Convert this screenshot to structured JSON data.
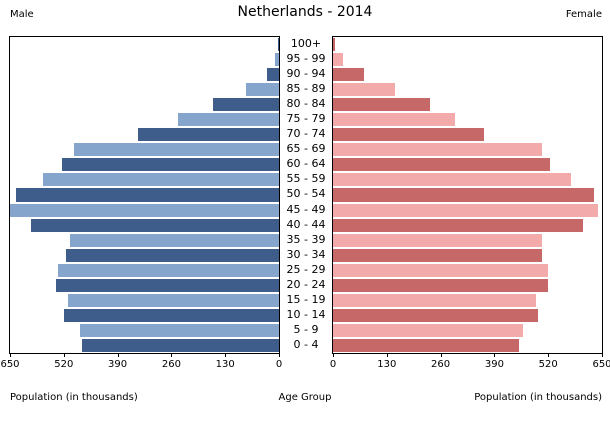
{
  "chart_data": {
    "type": "bar",
    "subtype": "population-pyramid",
    "title": "Netherlands - 2014",
    "left_series_label": "Male",
    "right_series_label": "Female",
    "left_axis_label": "Population (in thousands)",
    "center_axis_label": "Age Group",
    "right_axis_label": "Population (in thousands)",
    "xlim": [
      0,
      650
    ],
    "x_ticks": [
      0,
      130,
      260,
      390,
      520,
      650
    ],
    "grid": false,
    "legend_position": "none",
    "age_groups": [
      "100+",
      "95 - 99",
      "90 - 94",
      "85 - 89",
      "80 - 84",
      "75 - 79",
      "70 - 74",
      "65 - 69",
      "60 - 64",
      "55 - 59",
      "50 - 54",
      "45 - 49",
      "40 - 44",
      "35 - 39",
      "30 - 34",
      "25 - 29",
      "20 - 24",
      "15 - 19",
      "10 - 14",
      "5 - 9",
      "0 - 4"
    ],
    "series": [
      {
        "name": "Male",
        "side": "left",
        "values": [
          3,
          10,
          28,
          80,
          160,
          245,
          340,
          495,
          525,
          570,
          635,
          650,
          600,
          505,
          515,
          535,
          540,
          510,
          520,
          480,
          475
        ]
      },
      {
        "name": "Female",
        "side": "right",
        "values": [
          5,
          25,
          75,
          150,
          235,
          295,
          365,
          505,
          525,
          575,
          630,
          640,
          605,
          505,
          505,
          520,
          520,
          490,
          495,
          460,
          450
        ]
      }
    ],
    "colors": {
      "male_dark": "#3e5d8a",
      "male_light": "#85a5cc",
      "female_dark": "#c66868",
      "female_light": "#f2aaaa",
      "axis": "#000000",
      "background": "#ffffff"
    }
  }
}
